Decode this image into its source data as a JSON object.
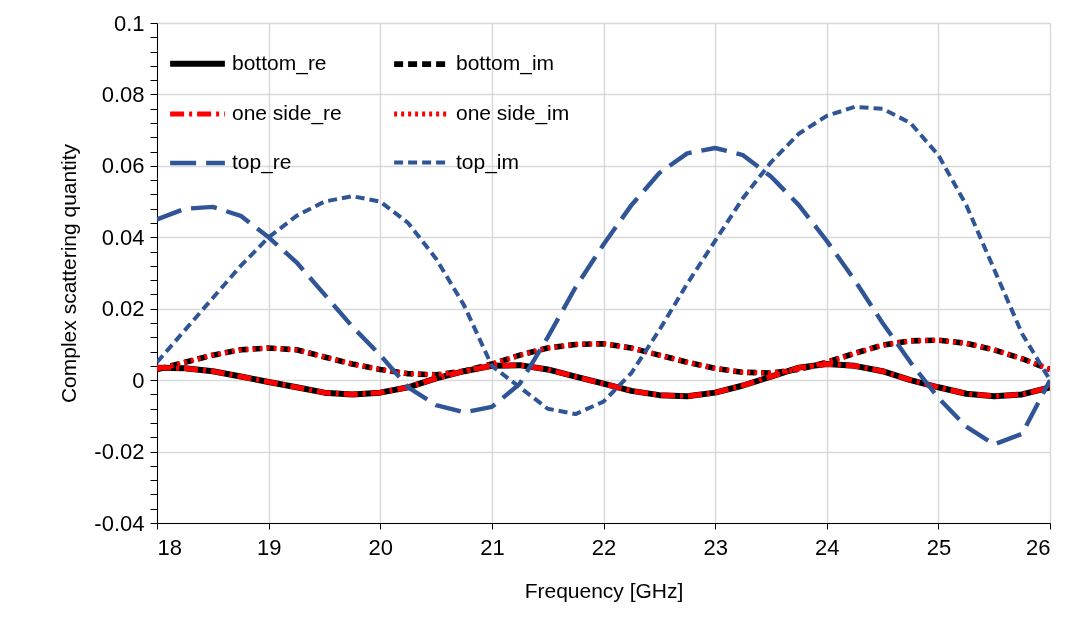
{
  "chart_data": {
    "type": "line",
    "xlabel": "Frequency [GHz]",
    "ylabel": "Complex scattering quantity",
    "x": [
      18,
      18.25,
      18.5,
      18.75,
      19,
      19.25,
      19.5,
      19.75,
      20,
      20.25,
      20.5,
      20.75,
      21,
      21.25,
      21.5,
      21.75,
      22,
      22.25,
      22.5,
      22.75,
      23,
      23.25,
      23.5,
      23.75,
      24,
      24.25,
      24.5,
      24.75,
      25,
      25.25,
      25.5,
      25.75,
      26
    ],
    "series": [
      {
        "name": "bottom_re",
        "color": "#000000",
        "line_style": "solid",
        "values": [
          0.0035,
          0.0033,
          0.0025,
          0.001,
          -0.0005,
          -0.002,
          -0.0035,
          -0.004,
          -0.0035,
          -0.002,
          0.0005,
          0.0025,
          0.004,
          0.0042,
          0.003,
          0.001,
          -0.001,
          -0.003,
          -0.0042,
          -0.0045,
          -0.0035,
          -0.0015,
          0.001,
          0.0035,
          0.0045,
          0.004,
          0.0025,
          0,
          -0.002,
          -0.0038,
          -0.0045,
          -0.004,
          -0.002
        ]
      },
      {
        "name": "bottom_im",
        "color": "#000000",
        "line_style": "dashed",
        "values": [
          0.003,
          0.005,
          0.007,
          0.0085,
          0.009,
          0.0085,
          0.0065,
          0.0045,
          0.003,
          0.0018,
          0.0015,
          0.0025,
          0.0045,
          0.007,
          0.009,
          0.01,
          0.0102,
          0.009,
          0.007,
          0.005,
          0.0033,
          0.0022,
          0.002,
          0.003,
          0.005,
          0.0075,
          0.0098,
          0.011,
          0.0112,
          0.0103,
          0.0085,
          0.006,
          0.003
        ]
      },
      {
        "name": "one side_re",
        "color": "#ff0000",
        "line_style": "dashdot",
        "values": [
          0.0035,
          0.0033,
          0.0025,
          0.001,
          -0.0005,
          -0.002,
          -0.0035,
          -0.004,
          -0.0035,
          -0.002,
          0.0005,
          0.0025,
          0.004,
          0.0042,
          0.003,
          0.001,
          -0.001,
          -0.003,
          -0.0042,
          -0.0045,
          -0.0035,
          -0.0015,
          0.001,
          0.0035,
          0.0045,
          0.004,
          0.0025,
          0,
          -0.002,
          -0.0038,
          -0.0045,
          -0.004,
          -0.002
        ]
      },
      {
        "name": "one side_im",
        "color": "#ff0000",
        "line_style": "dotted",
        "values": [
          0.003,
          0.005,
          0.007,
          0.0085,
          0.009,
          0.0085,
          0.0065,
          0.0045,
          0.003,
          0.0018,
          0.0015,
          0.0025,
          0.0045,
          0.007,
          0.009,
          0.01,
          0.0102,
          0.009,
          0.007,
          0.005,
          0.0033,
          0.0022,
          0.002,
          0.003,
          0.005,
          0.0075,
          0.0098,
          0.011,
          0.0112,
          0.0103,
          0.0085,
          0.006,
          0.003
        ]
      },
      {
        "name": "top_re",
        "color": "#2f5597",
        "line_style": "longdash",
        "values": [
          0.045,
          0.048,
          0.0485,
          0.046,
          0.04,
          0.033,
          0.024,
          0.015,
          0.007,
          -0.002,
          -0.007,
          -0.009,
          -0.0075,
          -0.001,
          0.012,
          0.026,
          0.038,
          0.049,
          0.058,
          0.0635,
          0.065,
          0.063,
          0.057,
          0.049,
          0.039,
          0.028,
          0.016,
          0.005,
          -0.005,
          -0.013,
          -0.018,
          -0.015,
          0
        ]
      },
      {
        "name": "top_im",
        "color": "#2f5597",
        "line_style": "dashed",
        "values": [
          0.005,
          0.014,
          0.023,
          0.032,
          0.04,
          0.046,
          0.05,
          0.0515,
          0.05,
          0.044,
          0.034,
          0.021,
          0.004,
          -0.002,
          -0.008,
          -0.0095,
          -0.006,
          0.002,
          0.014,
          0.027,
          0.039,
          0.051,
          0.061,
          0.069,
          0.074,
          0.0765,
          0.076,
          0.072,
          0.063,
          0.049,
          0.031,
          0.013,
          0
        ]
      }
    ],
    "xlim": [
      18,
      26
    ],
    "xticks": [
      18,
      19,
      20,
      21,
      22,
      23,
      24,
      25,
      26
    ],
    "ylim": [
      -0.04,
      0.1
    ],
    "yticks": [
      -0.04,
      {
        "value": -0.036,
        "label": null
      },
      {
        "value": -0.032,
        "label": null
      },
      {
        "value": -0.028,
        "label": null
      },
      {
        "value": -0.024,
        "label": null
      },
      -0.02,
      {
        "value": -0.016,
        "label": null
      },
      {
        "value": -0.012,
        "label": null
      },
      {
        "value": -0.008,
        "label": null
      },
      {
        "value": -0.004,
        "label": null
      },
      0,
      {
        "value": 0.004,
        "label": null
      },
      {
        "value": 0.008,
        "label": null
      },
      {
        "value": 0.012,
        "label": null
      },
      {
        "value": 0.016,
        "label": null
      },
      0.02,
      {
        "value": 0.024,
        "label": null
      },
      {
        "value": 0.028,
        "label": null
      },
      {
        "value": 0.032,
        "label": null
      },
      {
        "value": 0.036,
        "label": null
      },
      0.04,
      {
        "value": 0.044,
        "label": null
      },
      {
        "value": 0.048,
        "label": null
      },
      {
        "value": 0.052,
        "label": null
      },
      {
        "value": 0.056,
        "label": null
      },
      0.06,
      {
        "value": 0.064,
        "label": null
      },
      {
        "value": 0.068,
        "label": null
      },
      {
        "value": 0.072,
        "label": null
      },
      {
        "value": 0.076,
        "label": null
      },
      0.08,
      {
        "value": 0.084,
        "label": null
      },
      {
        "value": 0.088,
        "label": null
      },
      {
        "value": 0.092,
        "label": null
      },
      {
        "value": 0.096,
        "label": null
      },
      0.1
    ],
    "grid": true,
    "legend": "top left"
  }
}
